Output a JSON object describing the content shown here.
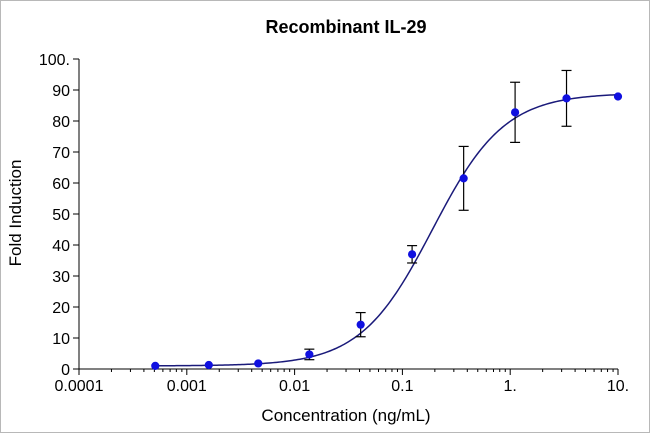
{
  "chart_data": {
    "type": "scatter",
    "title": "Recombinant IL-29",
    "xlabel": "Concentration (ng/mL)",
    "ylabel": "Fold Induction",
    "x_scale": "log",
    "xlim": [
      0.0001,
      10
    ],
    "ylim": [
      0,
      100
    ],
    "x_ticks": [
      0.0001,
      0.001,
      0.01,
      0.1,
      1,
      10
    ],
    "x_tick_labels": [
      "0.0001",
      "0.001",
      "0.01",
      "0.1",
      "1.",
      "10."
    ],
    "y_ticks": [
      0,
      10,
      20,
      30,
      40,
      50,
      60,
      70,
      80,
      90,
      100
    ],
    "y_tick_labels": [
      "0",
      "10",
      "20",
      "30",
      "40",
      "50",
      "60",
      "70",
      "80",
      "90",
      "100."
    ],
    "grid": false,
    "legend": "none",
    "colors": {
      "points": "#1010e0",
      "curve": "#1a1a7a",
      "error_bars": "#000000",
      "axes": "#000000"
    },
    "series": [
      {
        "x": [
          0.00051,
          0.0016,
          0.0046,
          0.0137,
          0.041,
          0.123,
          0.37,
          1.11,
          3.33,
          10
        ],
        "y": [
          1.0,
          1.3,
          1.8,
          4.7,
          14.3,
          37.0,
          61.5,
          82.8,
          87.3,
          87.9
        ],
        "error": [
          0,
          0,
          0,
          1.7,
          3.9,
          2.8,
          10.3,
          9.7,
          9.0,
          0
        ]
      }
    ],
    "fit_curve": {
      "model": "4PL",
      "bottom": 1.0,
      "top": 89.0,
      "ec50": 0.19,
      "hill": 1.3
    }
  }
}
